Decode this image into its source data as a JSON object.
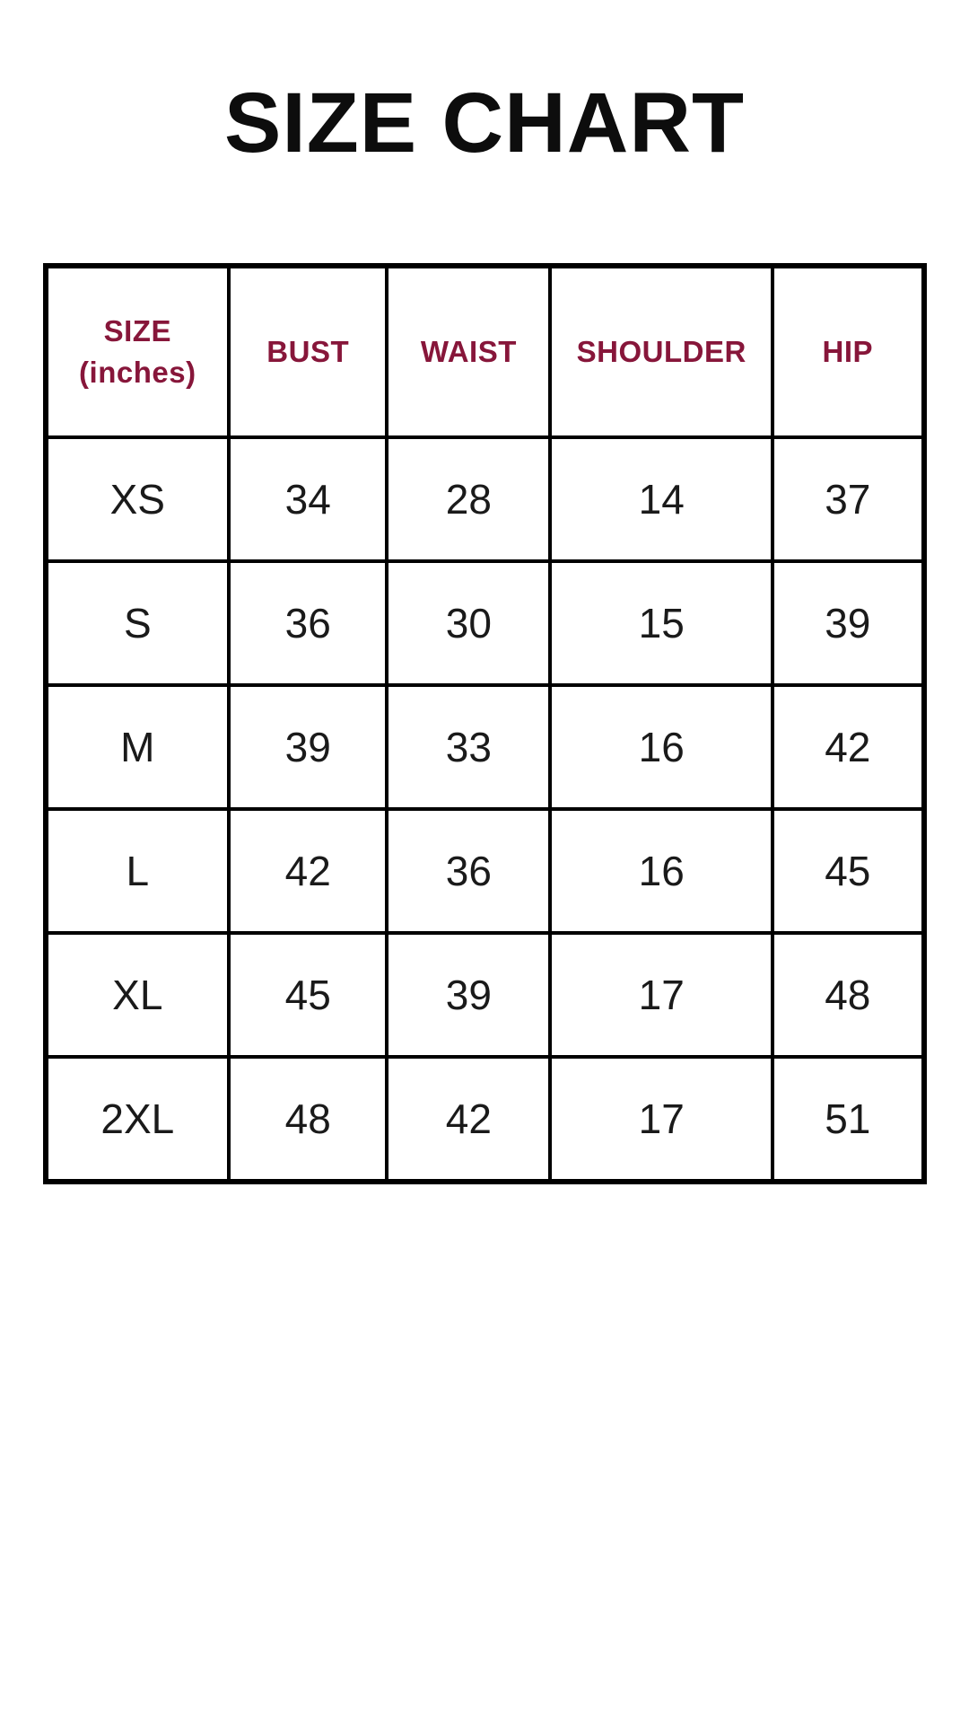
{
  "page": {
    "title": "SIZE CHART"
  },
  "colors": {
    "background": "#ffffff",
    "title_text": "#0d0d0d",
    "header_text": "#87163a",
    "data_text": "#1a1a1a",
    "border": "#000000"
  },
  "display": {
    "headers": [
      "SIZE\n(inches)",
      "BUST",
      "WAIST",
      "SHOULDER",
      "HIP"
    ]
  },
  "chart_data": {
    "type": "table",
    "title": "SIZE CHART",
    "unit": "inches",
    "columns": [
      "SIZE (inches)",
      "BUST",
      "WAIST",
      "SHOULDER",
      "HIP"
    ],
    "rows": [
      [
        "XS",
        34,
        28,
        14,
        37
      ],
      [
        "S",
        36,
        30,
        15,
        39
      ],
      [
        "M",
        39,
        33,
        16,
        42
      ],
      [
        "L",
        42,
        36,
        16,
        45
      ],
      [
        "XL",
        45,
        39,
        17,
        48
      ],
      [
        "2XL",
        48,
        42,
        17,
        51
      ]
    ]
  }
}
